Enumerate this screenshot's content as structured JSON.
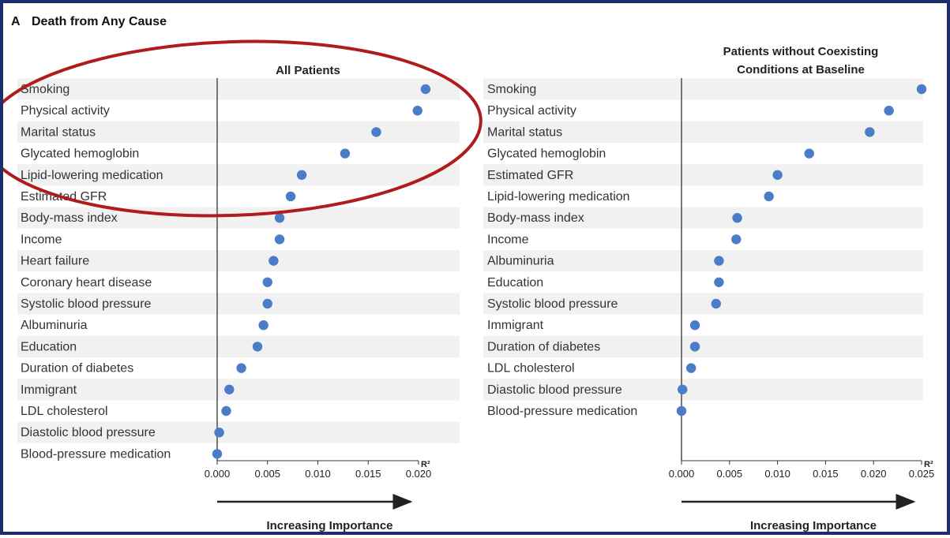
{
  "figure": {
    "panel_letter": "A",
    "title": "Death from Any Cause",
    "frame_color": "#1c2f6b",
    "point_color": "#4a7cc7",
    "annotation_color": "#b01c1c",
    "band_color": "#f1f1f1"
  },
  "chart_data": [
    {
      "type": "scatter",
      "title": "All Patients",
      "xlabel": "R²",
      "importance_label": "Increasing Importance",
      "xlim": [
        0,
        0.02
      ],
      "xticks": [
        "0.000",
        "0.005",
        "0.010",
        "0.015",
        "0.020"
      ],
      "grid": false,
      "categories": [
        "Smoking",
        "Physical activity",
        "Marital status",
        "Glycated hemoglobin",
        "Lipid-lowering medication",
        "Estimated GFR",
        "Body-mass index",
        "Income",
        "Heart failure",
        "Coronary heart disease",
        "Systolic blood pressure",
        "Albuminuria",
        "Education",
        "Duration of diabetes",
        "Immigrant",
        "LDL cholesterol",
        "Diastolic blood pressure",
        "Blood-pressure medication"
      ],
      "values": [
        0.0207,
        0.0199,
        0.0158,
        0.0127,
        0.0084,
        0.0073,
        0.0062,
        0.0062,
        0.0056,
        0.005,
        0.005,
        0.0046,
        0.004,
        0.0024,
        0.0012,
        0.0009,
        0.0002,
        0.0
      ]
    },
    {
      "type": "scatter",
      "title": "Patients without Coexisting Conditions at Baseline",
      "xlabel": "R²",
      "importance_label": "Increasing Importance",
      "xlim": [
        0,
        0.025
      ],
      "xticks": [
        "0.000",
        "0.005",
        "0.010",
        "0.015",
        "0.020",
        "0.025"
      ],
      "grid": false,
      "categories": [
        "Smoking",
        "Physical activity",
        "Marital status",
        "Glycated hemoglobin",
        "Estimated GFR",
        "Lipid-lowering medication",
        "Body-mass index",
        "Income",
        "Albuminuria",
        "Education",
        "Systolic blood pressure",
        "Immigrant",
        "Duration of diabetes",
        "LDL cholesterol",
        "Diastolic blood pressure",
        "Blood-pressure medication"
      ],
      "values": [
        0.025,
        0.0216,
        0.0196,
        0.0133,
        0.01,
        0.0091,
        0.0058,
        0.0057,
        0.0039,
        0.0039,
        0.0036,
        0.0014,
        0.0014,
        0.001,
        0.0001,
        0.0
      ]
    }
  ]
}
